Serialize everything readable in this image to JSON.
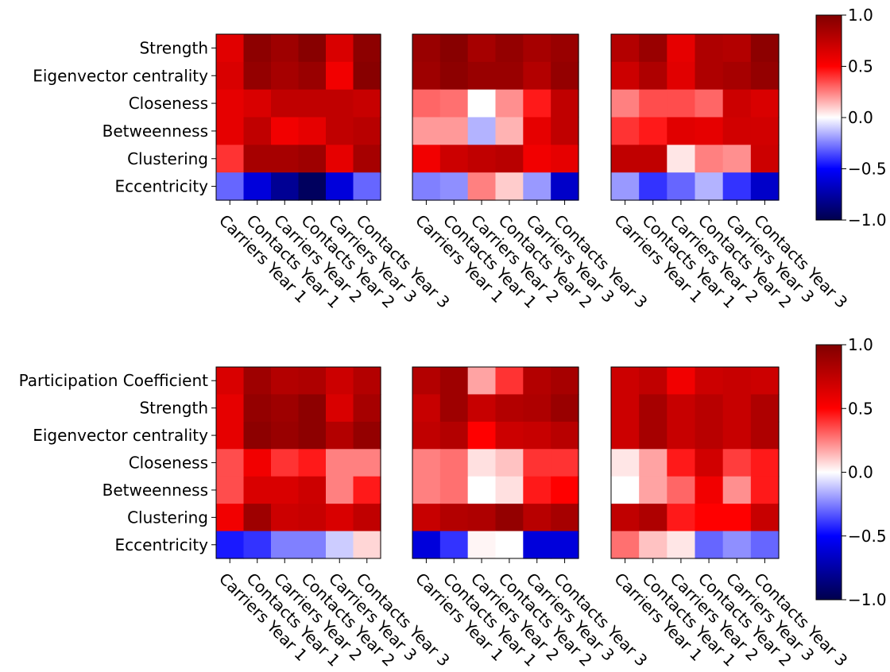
{
  "chart_data": [
    {
      "type": "heatmap",
      "panel": "top-1",
      "rows": [
        "Strength",
        "Eigenvector centrality",
        "Closeness",
        "Betweenness",
        "Clustering",
        "Eccentricity"
      ],
      "columns": [
        "Carriers Year 1",
        "Contacts Year 1",
        "Carriers Year 2",
        "Contacts Year 2",
        "Carriers Year 3",
        "Contacts Year 3"
      ],
      "values": [
        [
          0.62,
          0.95,
          0.88,
          0.97,
          0.65,
          0.95
        ],
        [
          0.65,
          0.92,
          0.85,
          0.9,
          0.55,
          0.97
        ],
        [
          0.6,
          0.65,
          0.75,
          0.75,
          0.75,
          0.72
        ],
        [
          0.6,
          0.75,
          0.55,
          0.6,
          0.75,
          0.78
        ],
        [
          0.4,
          0.85,
          0.85,
          0.88,
          0.6,
          0.85
        ],
        [
          -0.3,
          -0.6,
          -0.8,
          -0.95,
          -0.6,
          -0.3
        ]
      ]
    },
    {
      "type": "heatmap",
      "panel": "top-2",
      "rows": [
        "Strength",
        "Eigenvector centrality",
        "Closeness",
        "Betweenness",
        "Clustering",
        "Eccentricity"
      ],
      "columns": [
        "Carriers Year 1",
        "Contacts Year 1",
        "Carriers Year 2",
        "Contacts Year 2",
        "Carriers Year 3",
        "Contacts Year 3"
      ],
      "values": [
        [
          0.9,
          0.97,
          0.85,
          0.92,
          0.85,
          0.9
        ],
        [
          0.88,
          0.95,
          0.9,
          0.9,
          0.8,
          0.92
        ],
        [
          0.3,
          0.28,
          0.0,
          0.22,
          0.45,
          0.75
        ],
        [
          0.2,
          0.2,
          -0.15,
          0.15,
          0.6,
          0.75
        ],
        [
          0.55,
          0.7,
          0.75,
          0.78,
          0.55,
          0.6
        ],
        [
          -0.25,
          -0.22,
          0.25,
          0.1,
          -0.2,
          -0.65
        ]
      ]
    },
    {
      "type": "heatmap",
      "panel": "top-3",
      "rows": [
        "Strength",
        "Eigenvector centrality",
        "Closeness",
        "Betweenness",
        "Clustering",
        "Eccentricity"
      ],
      "columns": [
        "Carriers Year 1",
        "Contacts Year 1",
        "Carriers Year 2",
        "Contacts Year 2",
        "Carriers Year 3",
        "Contacts Year 3"
      ],
      "values": [
        [
          0.8,
          0.9,
          0.6,
          0.82,
          0.8,
          0.95
        ],
        [
          0.7,
          0.82,
          0.62,
          0.82,
          0.85,
          0.92
        ],
        [
          0.25,
          0.35,
          0.35,
          0.3,
          0.7,
          0.65
        ],
        [
          0.4,
          0.45,
          0.62,
          0.6,
          0.68,
          0.68
        ],
        [
          0.75,
          0.75,
          0.05,
          0.25,
          0.22,
          0.7
        ],
        [
          -0.2,
          -0.4,
          -0.3,
          -0.15,
          -0.4,
          -0.65
        ]
      ]
    },
    {
      "type": "heatmap",
      "panel": "bottom-1",
      "rows": [
        "Participation Coefficient",
        "Strength",
        "Eigenvector centrality",
        "Closeness",
        "Betweenness",
        "Clustering",
        "Eccentricity"
      ],
      "columns": [
        "Carriers Year 1",
        "Contacts Year 1",
        "Carriers Year 2",
        "Contacts Year 2",
        "Carriers Year 3",
        "Contacts Year 3"
      ],
      "values": [
        [
          0.65,
          0.88,
          0.8,
          0.82,
          0.7,
          0.8
        ],
        [
          0.6,
          0.92,
          0.88,
          0.95,
          0.65,
          0.85
        ],
        [
          0.6,
          0.95,
          0.9,
          0.95,
          0.8,
          0.92
        ],
        [
          0.35,
          0.55,
          0.4,
          0.45,
          0.25,
          0.25
        ],
        [
          0.35,
          0.65,
          0.65,
          0.7,
          0.25,
          0.45
        ],
        [
          0.55,
          0.88,
          0.7,
          0.72,
          0.65,
          0.75
        ],
        [
          -0.45,
          -0.4,
          -0.25,
          -0.25,
          -0.1,
          0.08
        ]
      ]
    },
    {
      "type": "heatmap",
      "panel": "bottom-2",
      "rows": [
        "Participation Coefficient",
        "Strength",
        "Eigenvector centrality",
        "Closeness",
        "Betweenness",
        "Clustering",
        "Eccentricity"
      ],
      "columns": [
        "Carriers Year 1",
        "Contacts Year 1",
        "Carriers Year 2",
        "Contacts Year 2",
        "Carriers Year 3",
        "Contacts Year 3"
      ],
      "values": [
        [
          0.8,
          0.88,
          0.18,
          0.4,
          0.8,
          0.85
        ],
        [
          0.72,
          0.88,
          0.72,
          0.8,
          0.82,
          0.9
        ],
        [
          0.75,
          0.8,
          0.5,
          0.7,
          0.72,
          0.78
        ],
        [
          0.25,
          0.28,
          0.06,
          0.12,
          0.4,
          0.4
        ],
        [
          0.25,
          0.28,
          0.0,
          0.06,
          0.45,
          0.5
        ],
        [
          0.72,
          0.8,
          0.82,
          0.92,
          0.78,
          0.85
        ],
        [
          -0.6,
          -0.4,
          0.02,
          0.0,
          -0.6,
          -0.6
        ]
      ]
    },
    {
      "type": "heatmap",
      "panel": "bottom-3",
      "rows": [
        "Participation Coefficient",
        "Strength",
        "Eigenvector centrality",
        "Closeness",
        "Betweenness",
        "Clustering",
        "Eccentricity"
      ],
      "columns": [
        "Carriers Year 1",
        "Contacts Year 1",
        "Carriers Year 2",
        "Contacts Year 2",
        "Carriers Year 3",
        "Contacts Year 3"
      ],
      "values": [
        [
          0.7,
          0.75,
          0.55,
          0.7,
          0.72,
          0.7
        ],
        [
          0.7,
          0.85,
          0.72,
          0.78,
          0.72,
          0.82
        ],
        [
          0.7,
          0.85,
          0.72,
          0.78,
          0.72,
          0.82
        ],
        [
          0.05,
          0.18,
          0.45,
          0.68,
          0.38,
          0.45
        ],
        [
          0.0,
          0.18,
          0.3,
          0.55,
          0.22,
          0.45
        ],
        [
          0.75,
          0.82,
          0.45,
          0.5,
          0.5,
          0.72
        ],
        [
          0.28,
          0.12,
          0.05,
          -0.3,
          -0.22,
          -0.3
        ]
      ]
    }
  ],
  "colorbar": {
    "colormap": "seismic",
    "range": [
      -1.0,
      1.0
    ],
    "ticks": [
      -1.0,
      -0.5,
      0.0,
      0.5,
      1.0
    ],
    "tick_labels": [
      "−1.0",
      "−0.5",
      "0.0",
      "0.5",
      "1.0"
    ]
  }
}
